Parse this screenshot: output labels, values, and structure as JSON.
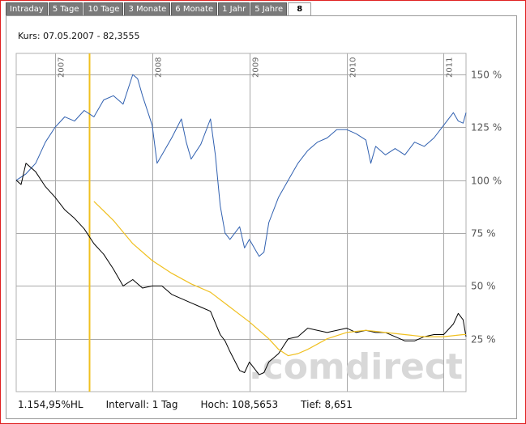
{
  "tabs": [
    "Intraday",
    "5 Tage",
    "10 Tage",
    "3 Monate",
    "6 Monate",
    "1 Jahr",
    "5 Jahre",
    "8"
  ],
  "active_tab": "8",
  "kurs_label": "Kurs: 07.05.2007 - 82,3555",
  "watermark": ".comdirect",
  "footer": {
    "hl": "1.154,95%HL",
    "intervall": "Intervall: 1 Tag",
    "hoch": "Hoch: 108,5653",
    "tief": "Tief:  8,651"
  },
  "colors": {
    "blue_series": "#3060b0",
    "black_series": "#000000",
    "moving_average": "#f0c020",
    "cursor_line": "#f0c020",
    "grid": "#a8a8a8",
    "tab_bg": "#7a7a7a",
    "frame": "#e02020"
  },
  "chart_data": {
    "type": "line",
    "title": "",
    "xlabel": "",
    "ylabel": "",
    "x_ticks": [
      "2007",
      "2008",
      "2009",
      "2010",
      "2011"
    ],
    "y_ticks": [
      "150 %",
      "125 %",
      "100 %",
      "75 %",
      "50 %",
      "25 %"
    ],
    "y_tick_values": [
      150,
      125,
      100,
      75,
      50,
      25
    ],
    "xlim": [
      2006.6,
      2011.23
    ],
    "ylim": [
      0,
      160
    ],
    "grid": true,
    "cursor_date": "07.05.2007",
    "cursor_x": 2007.35,
    "series": [
      {
        "color_key": "blue_series",
        "x": [
          2006.6,
          2006.7,
          2006.8,
          2006.9,
          2007.0,
          2007.1,
          2007.2,
          2007.3,
          2007.4,
          2007.5,
          2007.6,
          2007.7,
          2007.8,
          2007.85,
          2007.9,
          2008.0,
          2008.05,
          2008.1,
          2008.2,
          2008.3,
          2008.35,
          2008.4,
          2008.5,
          2008.6,
          2008.65,
          2008.7,
          2008.75,
          2008.8,
          2008.9,
          2008.95,
          2009.0,
          2009.1,
          2009.15,
          2009.2,
          2009.3,
          2009.4,
          2009.5,
          2009.6,
          2009.7,
          2009.8,
          2009.9,
          2010.0,
          2010.1,
          2010.2,
          2010.25,
          2010.3,
          2010.4,
          2010.5,
          2010.6,
          2010.7,
          2010.8,
          2010.9,
          2011.0,
          2011.1,
          2011.15,
          2011.2,
          2011.23
        ],
        "y": [
          100,
          103,
          108,
          118,
          125,
          130,
          128,
          133,
          130,
          138,
          140,
          136,
          150,
          148,
          140,
          126,
          108,
          112,
          120,
          129,
          118,
          110,
          117,
          129,
          112,
          88,
          75,
          72,
          78,
          68,
          72,
          64,
          66,
          80,
          92,
          100,
          108,
          114,
          118,
          120,
          124,
          124,
          122,
          119,
          108,
          116,
          112,
          115,
          112,
          118,
          116,
          120,
          126,
          132,
          128,
          127,
          132
        ]
      },
      {
        "color_key": "black_series",
        "x": [
          2006.6,
          2006.65,
          2006.7,
          2006.8,
          2006.9,
          2007.0,
          2007.1,
          2007.2,
          2007.3,
          2007.4,
          2007.5,
          2007.6,
          2007.7,
          2007.8,
          2007.9,
          2008.0,
          2008.1,
          2008.2,
          2008.3,
          2008.4,
          2008.5,
          2008.6,
          2008.7,
          2008.75,
          2008.8,
          2008.9,
          2008.95,
          2009.0,
          2009.1,
          2009.15,
          2009.2,
          2009.3,
          2009.4,
          2009.5,
          2009.6,
          2009.7,
          2009.8,
          2009.9,
          2010.0,
          2010.1,
          2010.2,
          2010.3,
          2010.4,
          2010.5,
          2010.6,
          2010.7,
          2010.8,
          2010.9,
          2011.0,
          2011.1,
          2011.15,
          2011.2,
          2011.23
        ],
        "y": [
          100,
          98,
          108,
          104,
          97,
          92,
          86,
          82,
          77,
          70,
          65,
          58,
          50,
          53,
          49,
          50,
          50,
          46,
          44,
          42,
          40,
          38,
          27,
          24,
          19,
          10,
          9,
          14,
          8,
          9,
          14,
          18,
          25,
          26,
          30,
          29,
          28,
          29,
          30,
          28,
          29,
          28,
          28,
          26,
          24,
          24,
          26,
          27,
          27,
          32,
          37,
          34,
          26
        ]
      },
      {
        "color_key": "moving_average",
        "x": [
          2007.4,
          2007.6,
          2007.8,
          2008.0,
          2008.2,
          2008.4,
          2008.6,
          2008.8,
          2009.0,
          2009.2,
          2009.3,
          2009.4,
          2009.5,
          2009.6,
          2009.8,
          2010.0,
          2010.2,
          2010.4,
          2010.6,
          2010.8,
          2011.0,
          2011.2,
          2011.23
        ],
        "y": [
          90,
          81,
          70,
          62,
          56,
          51,
          47,
          40,
          33,
          25,
          20,
          17,
          18,
          20,
          25,
          28,
          29,
          28,
          27,
          26,
          26,
          27,
          27
        ]
      }
    ]
  }
}
